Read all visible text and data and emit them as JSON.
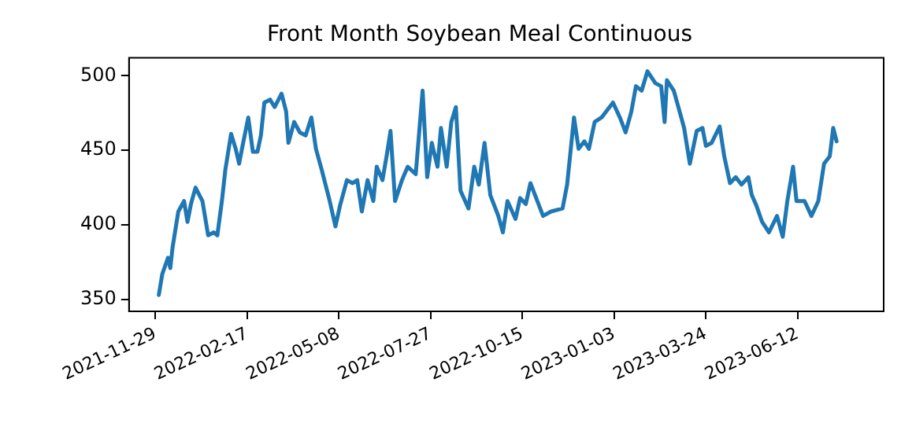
{
  "chart_data": {
    "type": "line",
    "title": "Front Month Soybean Meal Continuous",
    "x": [
      "2021-12-02",
      "2021-12-05",
      "2021-12-10",
      "2021-12-12",
      "2021-12-14",
      "2021-12-19",
      "2021-12-24",
      "2021-12-27",
      "2021-12-30",
      "2022-01-03",
      "2022-01-09",
      "2022-01-14",
      "2022-01-19",
      "2022-01-22",
      "2022-01-26",
      "2022-01-29",
      "2022-02-03",
      "2022-02-07",
      "2022-02-10",
      "2022-02-13",
      "2022-02-18",
      "2022-02-22",
      "2022-02-26",
      "2022-03-01",
      "2022-03-04",
      "2022-03-09",
      "2022-03-13",
      "2022-03-19",
      "2022-03-23",
      "2022-03-25",
      "2022-03-30",
      "2022-04-04",
      "2022-04-09",
      "2022-04-14",
      "2022-04-18",
      "2022-04-23",
      "2022-04-30",
      "2022-05-05",
      "2022-05-09",
      "2022-05-15",
      "2022-05-20",
      "2022-05-24",
      "2022-05-28",
      "2022-06-02",
      "2022-06-07",
      "2022-06-10",
      "2022-06-15",
      "2022-06-19",
      "2022-06-22",
      "2022-06-26",
      "2022-07-02",
      "2022-07-07",
      "2022-07-14",
      "2022-07-20",
      "2022-07-24",
      "2022-07-28",
      "2022-08-02",
      "2022-08-05",
      "2022-08-10",
      "2022-08-14",
      "2022-08-18",
      "2022-08-22",
      "2022-08-29",
      "2022-09-03",
      "2022-09-07",
      "2022-09-12",
      "2022-09-17",
      "2022-09-24",
      "2022-09-28",
      "2022-10-02",
      "2022-10-09",
      "2022-10-13",
      "2022-10-18",
      "2022-10-22",
      "2022-10-28",
      "2022-11-02",
      "2022-11-09",
      "2022-11-19",
      "2022-11-23",
      "2022-11-29",
      "2022-12-03",
      "2022-12-08",
      "2022-12-12",
      "2022-12-17",
      "2022-12-23",
      "2022-12-28",
      "2023-01-02",
      "2023-01-08",
      "2023-01-13",
      "2023-01-18",
      "2023-01-22",
      "2023-01-27",
      "2023-02-01",
      "2023-02-08",
      "2023-02-13",
      "2023-02-16",
      "2023-02-18",
      "2023-02-24",
      "2023-02-28",
      "2023-03-05",
      "2023-03-10",
      "2023-03-16",
      "2023-03-21",
      "2023-03-24",
      "2023-03-29",
      "2023-04-05",
      "2023-04-09",
      "2023-04-14",
      "2023-04-19",
      "2023-04-24",
      "2023-04-30",
      "2023-05-03",
      "2023-05-07",
      "2023-05-12",
      "2023-05-18",
      "2023-05-25",
      "2023-05-30",
      "2023-06-03",
      "2023-06-08",
      "2023-06-11",
      "2023-06-18",
      "2023-06-24",
      "2023-06-30",
      "2023-07-05",
      "2023-07-10",
      "2023-07-13",
      "2023-07-16"
    ],
    "series": [
      {
        "color": "#1f77b4",
        "values": [
          353,
          367,
          378,
          371,
          385,
          409,
          416,
          402,
          414,
          425,
          416,
          393,
          395,
          393,
          416,
          437,
          461,
          451,
          441,
          453,
          472,
          449,
          449,
          460,
          482,
          484,
          479,
          488,
          476,
          455,
          469,
          462,
          460,
          472,
          451,
          437,
          416,
          399,
          413,
          430,
          428,
          430,
          409,
          430,
          416,
          439,
          430,
          448,
          463,
          416,
          430,
          439,
          434,
          490,
          432,
          455,
          439,
          465,
          439,
          469,
          479,
          423,
          411,
          439,
          427,
          455,
          420,
          406,
          395,
          416,
          404,
          418,
          414,
          428,
          416,
          406,
          409,
          411,
          427,
          472,
          451,
          456,
          451,
          469,
          472,
          477,
          482,
          472,
          462,
          476,
          493,
          490,
          503,
          495,
          493,
          469,
          497,
          490,
          479,
          465,
          441,
          463,
          465,
          453,
          455,
          466,
          446,
          428,
          432,
          427,
          432,
          420,
          413,
          402,
          395,
          406,
          392,
          416,
          439,
          416,
          416,
          406,
          416,
          441,
          446,
          465,
          456
        ]
      }
    ],
    "xlim": [
      "2021-11-06",
      "2023-08-26"
    ],
    "xticks": [
      {
        "value": "2021-11-29",
        "label": "2021-11-29"
      },
      {
        "value": "2022-02-17",
        "label": "2022-02-17"
      },
      {
        "value": "2022-05-08",
        "label": "2022-05-08"
      },
      {
        "value": "2022-07-27",
        "label": "2022-07-27"
      },
      {
        "value": "2022-10-15",
        "label": "2022-10-15"
      },
      {
        "value": "2023-01-03",
        "label": "2023-01-03"
      },
      {
        "value": "2023-03-24",
        "label": "2023-03-24"
      },
      {
        "value": "2023-06-12",
        "label": "2023-06-12"
      }
    ],
    "ylim": [
      342,
      512
    ],
    "yticks": [
      350,
      400,
      450,
      500
    ],
    "grid": false,
    "legend": false,
    "marker": "none",
    "line_style": "solid"
  }
}
